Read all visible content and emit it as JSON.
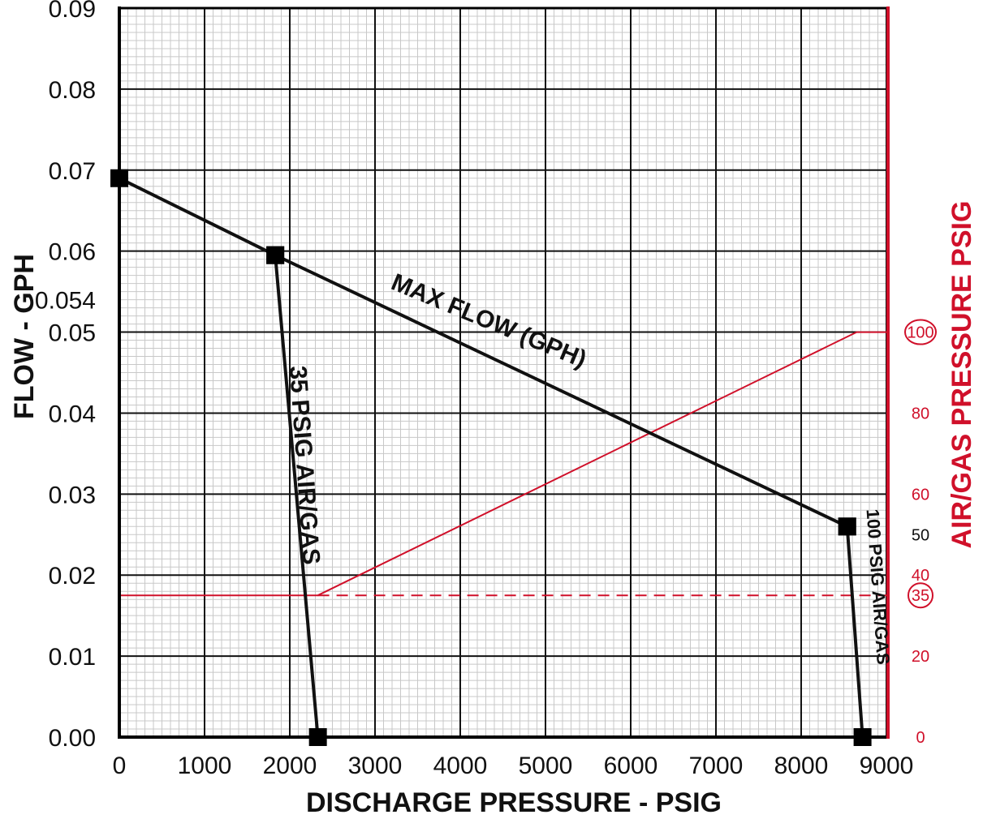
{
  "chart_data": {
    "type": "line",
    "xlabel": "DISCHARGE PRESSURE - PSIG",
    "ylabel": "FLOW - GPH",
    "y2label": "AIR/GAS PRESSURE PSIG",
    "xlim": [
      0,
      9000
    ],
    "ylim": [
      0,
      0.09
    ],
    "y2lim": [
      0,
      100
    ],
    "grid": true,
    "x_ticks": [
      "0",
      "1000",
      "2000",
      "3000",
      "4000",
      "5000",
      "6000",
      "7000",
      "8000",
      "9000"
    ],
    "x_tick_values": [
      0,
      1000,
      2000,
      3000,
      4000,
      5000,
      6000,
      7000,
      8000,
      9000
    ],
    "y_ticks": [
      "0.00",
      "0.01",
      "0.02",
      "0.03",
      "0.04",
      "0.05",
      "0.054",
      "0.06",
      "0.07",
      "0.08",
      "0.09"
    ],
    "y_tick_values": [
      0,
      0.01,
      0.02,
      0.03,
      0.04,
      0.05,
      0.054,
      0.06,
      0.07,
      0.08,
      0.09
    ],
    "y2_ticks": [
      "0",
      "20",
      "35",
      "40",
      "50",
      "60",
      "80",
      "100"
    ],
    "y2_tick_values": [
      0,
      20,
      35,
      40,
      50,
      60,
      80,
      100
    ],
    "y2_circled": [
      "35",
      "100"
    ],
    "y2_black": [
      "50"
    ],
    "series": [
      {
        "name": "MAX FLOW (GPH)",
        "color": "#111111",
        "axis": "left",
        "markers": true,
        "points": [
          [
            0,
            0.069
          ],
          [
            1830,
            0.0595
          ],
          [
            8540,
            0.026
          ]
        ]
      },
      {
        "name": "35 PSIG AIR/GAS",
        "color": "#111111",
        "axis": "left",
        "markers": true,
        "points": [
          [
            1830,
            0.0595
          ],
          [
            2330,
            0.0
          ]
        ]
      },
      {
        "name": "100 PSIG AIR/GAS",
        "color": "#111111",
        "axis": "left",
        "markers": true,
        "points": [
          [
            8540,
            0.026
          ],
          [
            8720,
            0.0
          ]
        ]
      },
      {
        "name": "",
        "color": "#d0102a",
        "axis": "right",
        "markers": false,
        "style": "solid",
        "points": [
          [
            0,
            35
          ],
          [
            2330,
            35
          ],
          [
            8650,
            100
          ],
          [
            9000,
            100
          ]
        ]
      },
      {
        "name": "",
        "color": "#d0102a",
        "axis": "right",
        "markers": false,
        "style": "dashed",
        "points": [
          [
            2330,
            35
          ],
          [
            9000,
            35
          ]
        ]
      }
    ],
    "annotations": [
      {
        "text": "MAX FLOW (GPH)",
        "x": 4300,
        "y": 0.0505,
        "angle": 22.5,
        "size": "large"
      },
      {
        "text": "35 PSIG AIR/GAS",
        "x": 2080,
        "y": 0.0335,
        "angle": 86,
        "size": "large"
      },
      {
        "text": "100 PSIG AIR/GAS",
        "x": 8830,
        "y": 0.0185,
        "angle": 86,
        "size": "small"
      }
    ],
    "colors": {
      "primary": "#111111",
      "secondary_axis": "#d0102a",
      "minor_grid": "#c8c8c8"
    }
  }
}
